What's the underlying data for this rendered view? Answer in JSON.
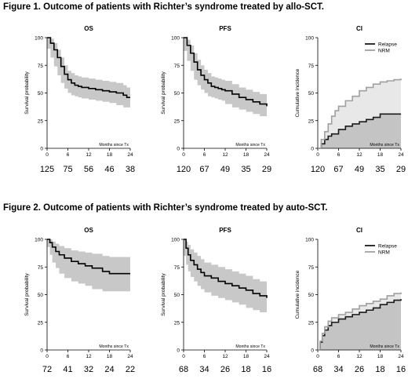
{
  "figures": [
    {
      "title": "Figure 1. Outcome of patients with Richter’s syndrome treated by allo-SCT.",
      "panels": [
        {
          "name": "os",
          "chart_data": {
            "type": "line",
            "title": "OS",
            "ylabel": "Survival probability",
            "xlabel": "Months since Tx",
            "xlim": [
              0,
              24
            ],
            "ylim": [
              0,
              100
            ],
            "xticks": [
              0,
              6,
              12,
              18,
              24
            ],
            "yticks": [
              0,
              25,
              50,
              75,
              100
            ],
            "series": [
              {
                "style": "step",
                "x": [
                  0,
                  1,
                  2,
                  3,
                  4,
                  5,
                  6,
                  7,
                  8,
                  9,
                  10,
                  12,
                  14,
                  16,
                  18,
                  20,
                  22,
                  23,
                  24
                ],
                "y": [
                  100,
                  95,
                  89,
                  82,
                  74,
                  67,
                  62,
                  59,
                  57,
                  56,
                  55,
                  54,
                  53,
                  52,
                  51,
                  50,
                  48,
                  46,
                  46
                ]
              }
            ],
            "band": {
              "x": [
                0,
                1,
                2,
                3,
                4,
                5,
                6,
                7,
                8,
                9,
                10,
                12,
                14,
                16,
                18,
                20,
                22,
                23,
                24
              ],
              "lower": [
                100,
                90,
                82,
                74,
                66,
                59,
                54,
                50,
                48,
                47,
                46,
                45,
                44,
                43,
                42,
                41,
                39,
                37,
                37
              ],
              "upper": [
                100,
                99,
                95,
                89,
                82,
                75,
                70,
                68,
                66,
                65,
                64,
                63,
                62,
                61,
                60,
                59,
                57,
                55,
                55
              ]
            },
            "at_risk": [
              "125",
              "75",
              "56",
              "46",
              "38"
            ]
          }
        },
        {
          "name": "pfs",
          "chart_data": {
            "type": "line",
            "title": "PFS",
            "ylabel": "Survival probability",
            "xlabel": "Months since Tx",
            "xlim": [
              0,
              24
            ],
            "ylim": [
              0,
              100
            ],
            "xticks": [
              0,
              6,
              12,
              18,
              24
            ],
            "yticks": [
              0,
              25,
              50,
              75,
              100
            ],
            "series": [
              {
                "style": "step",
                "x": [
                  0,
                  1,
                  2,
                  3,
                  4,
                  5,
                  6,
                  7,
                  8,
                  9,
                  10,
                  11,
                  12,
                  14,
                  16,
                  18,
                  20,
                  22,
                  24
                ],
                "y": [
                  100,
                  93,
                  86,
                  78,
                  71,
                  66,
                  62,
                  59,
                  56,
                  55,
                  54,
                  53,
                  52,
                  49,
                  46,
                  44,
                  42,
                  40,
                  38
                ]
              }
            ],
            "band": {
              "x": [
                0,
                1,
                2,
                3,
                4,
                5,
                6,
                7,
                8,
                9,
                10,
                11,
                12,
                14,
                16,
                18,
                20,
                22,
                24
              ],
              "lower": [
                100,
                88,
                79,
                70,
                62,
                57,
                53,
                50,
                47,
                46,
                45,
                44,
                43,
                40,
                37,
                35,
                33,
                31,
                29
              ],
              "upper": [
                100,
                98,
                93,
                86,
                80,
                75,
                71,
                68,
                65,
                64,
                63,
                62,
                61,
                58,
                55,
                53,
                51,
                49,
                47
              ]
            },
            "at_risk": [
              "120",
              "67",
              "49",
              "35",
              "29"
            ]
          }
        },
        {
          "name": "ci",
          "chart_data": {
            "type": "area",
            "title": "CI",
            "ylabel": "Cumulative incidence",
            "xlabel": "Months since Tx",
            "xlim": [
              0,
              24
            ],
            "ylim": [
              0,
              100
            ],
            "xticks": [
              0,
              6,
              12,
              18,
              24
            ],
            "yticks": [
              0,
              25,
              50,
              75,
              100
            ],
            "legend": "top-right",
            "series": [
              {
                "name": "Relapse",
                "color": "#1a1a1a",
                "style": "step",
                "x": [
                  0,
                  1,
                  2,
                  3,
                  4,
                  6,
                  8,
                  10,
                  12,
                  14,
                  16,
                  18,
                  24
                ],
                "y": [
                  0,
                  4,
                  8,
                  11,
                  13,
                  17,
                  20,
                  22,
                  24,
                  26,
                  28,
                  31,
                  31
                ]
              },
              {
                "name": "NRM",
                "color": "#a0a0a0",
                "style": "step",
                "x": [
                  0,
                  1,
                  2,
                  3,
                  4,
                  5,
                  6,
                  8,
                  10,
                  12,
                  14,
                  16,
                  18,
                  20,
                  22,
                  24
                ],
                "y": [
                  0,
                  8,
                  15,
                  22,
                  29,
                  34,
                  38,
                  43,
                  47,
                  52,
                  55,
                  58,
                  60,
                  61,
                  62,
                  63
                ]
              }
            ],
            "at_risk": [
              "120",
              "67",
              "49",
              "35",
              "29"
            ]
          }
        }
      ]
    },
    {
      "title": "Figure 2. Outcome of patients with Richter’s syndrome treated by auto-SCT.",
      "panels": [
        {
          "name": "os",
          "chart_data": {
            "type": "line",
            "title": "OS",
            "ylabel": "Survival probability",
            "xlabel": "Months since Tx",
            "xlim": [
              0,
              24
            ],
            "ylim": [
              0,
              100
            ],
            "xticks": [
              0,
              6,
              12,
              18,
              24
            ],
            "yticks": [
              0,
              25,
              50,
              75,
              100
            ],
            "series": [
              {
                "style": "step",
                "x": [
                  0,
                  0.8,
                  1.5,
                  2.5,
                  3.5,
                  5,
                  7,
                  9,
                  11,
                  13,
                  16,
                  18,
                  24
                ],
                "y": [
                  100,
                  97,
                  93,
                  89,
                  86,
                  83,
                  80,
                  78,
                  76,
                  74,
                  71,
                  69,
                  69
                ]
              }
            ],
            "band": {
              "x": [
                0,
                0.8,
                1.5,
                2.5,
                3.5,
                5,
                7,
                9,
                11,
                13,
                16,
                18,
                24
              ],
              "lower": [
                100,
                93,
                86,
                79,
                74,
                69,
                65,
                62,
                60,
                58,
                55,
                53,
                53
              ],
              "upper": [
                100,
                100,
                98,
                96,
                94,
                92,
                90,
                89,
                88,
                87,
                85,
                84,
                84
              ]
            },
            "at_risk": [
              "72",
              "41",
              "32",
              "24",
              "22"
            ]
          }
        },
        {
          "name": "pfs",
          "chart_data": {
            "type": "line",
            "title": "PFS",
            "ylabel": "Survival probability",
            "xlabel": "Months since Tx",
            "xlim": [
              0,
              24
            ],
            "ylim": [
              0,
              100
            ],
            "xticks": [
              0,
              6,
              12,
              18,
              24
            ],
            "yticks": [
              0,
              25,
              50,
              75,
              100
            ],
            "series": [
              {
                "style": "step",
                "x": [
                  0,
                  0.7,
                  1.3,
                  2,
                  3,
                  4,
                  5,
                  6,
                  8,
                  10,
                  12,
                  14,
                  16,
                  18,
                  20,
                  22,
                  24
                ],
                "y": [
                  100,
                  92,
                  86,
                  81,
                  77,
                  73,
                  70,
                  67,
                  65,
                  62,
                  60,
                  58,
                  56,
                  54,
                  51,
                  49,
                  47
                ]
              }
            ],
            "band": {
              "x": [
                0,
                0.7,
                1.3,
                2,
                3,
                4,
                5,
                6,
                8,
                10,
                12,
                14,
                16,
                18,
                20,
                22,
                24
              ],
              "lower": [
                100,
                85,
                77,
                71,
                66,
                62,
                58,
                55,
                52,
                49,
                47,
                45,
                43,
                41,
                38,
                36,
                34
              ],
              "upper": [
                100,
                98,
                95,
                91,
                88,
                85,
                82,
                79,
                77,
                75,
                73,
                71,
                69,
                67,
                64,
                62,
                60
              ]
            },
            "at_risk": [
              "68",
              "34",
              "26",
              "18",
              "16"
            ]
          }
        },
        {
          "name": "ci",
          "chart_data": {
            "type": "area",
            "title": "CI",
            "ylabel": "Cumulative incidence",
            "xlabel": "Months since Tx",
            "xlim": [
              0,
              24
            ],
            "ylim": [
              0,
              100
            ],
            "xticks": [
              0,
              6,
              12,
              18,
              24
            ],
            "yticks": [
              0,
              25,
              50,
              75,
              100
            ],
            "legend": "top-right",
            "series": [
              {
                "name": "Relapse",
                "color": "#1a1a1a",
                "style": "step",
                "x": [
                  0,
                  0.7,
                  1.3,
                  2,
                  3,
                  4,
                  6,
                  8,
                  10,
                  12,
                  14,
                  16,
                  18,
                  20,
                  22,
                  24
                ],
                "y": [
                  0,
                  7,
                  13,
                  18,
                  22,
                  25,
                  28,
                  30,
                  32,
                  34,
                  36,
                  38,
                  41,
                  43,
                  45,
                  46
                ]
              },
              {
                "name": "NRM",
                "color": "#a0a0a0",
                "style": "step",
                "x": [
                  0,
                  0.7,
                  1.3,
                  2,
                  3,
                  4,
                  6,
                  8,
                  10,
                  12,
                  14,
                  16,
                  18,
                  20,
                  22,
                  24
                ],
                "y": [
                  0,
                  8,
                  15,
                  21,
                  26,
                  29,
                  32,
                  34,
                  37,
                  40,
                  42,
                  44,
                  46,
                  49,
                  51,
                  52
                ]
              }
            ],
            "at_risk": [
              "68",
              "34",
              "26",
              "18",
              "16"
            ]
          }
        }
      ]
    }
  ]
}
